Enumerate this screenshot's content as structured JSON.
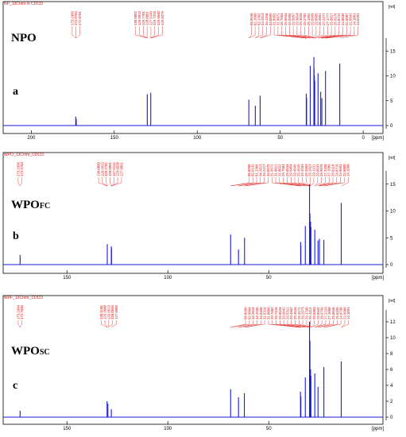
{
  "chart_data": [
    {
      "type": "line",
      "panel_letter": "a",
      "sample_label": "NPO",
      "sample_sub": "",
      "header": "NP_13Cnmr in CDCl3",
      "xlabel": "[ppm]",
      "ylabel": "[rel]",
      "xlim": [
        215,
        -10
      ],
      "ylim": [
        -0.5,
        16
      ],
      "x_ticks": [
        200,
        150,
        100,
        50,
        0
      ],
      "y_ticks": [
        0,
        5,
        10,
        15
      ],
      "grid": false,
      "peak_groups": [
        {
          "labels": [
            "173.1969",
            "172.9784",
            "172.8781"
          ],
          "peaks": [
            [
              173.2,
              1.8
            ],
            [
              172.98,
              1.4
            ],
            [
              172.88,
              1.2
            ]
          ]
        },
        {
          "labels": [
            "130.0802",
            "129.9913",
            "129.7781",
            "128.0081",
            "127.9143",
            "129.7316",
            "129.6540",
            "129.6379"
          ],
          "peaks": [
            [
              130.1,
              6.3
            ],
            [
              128.0,
              6.6
            ]
          ]
        },
        {
          "labels": [
            "68.8948",
            "62.1060",
            "62.1302",
            "34.2813",
            "34.1150",
            "34.0899",
            "31.8952",
            "31.8871",
            "29.7654",
            "29.6943",
            "29.5955",
            "29.5657",
            "29.3814",
            "29.3520",
            "29.2702",
            "29.1892",
            "29.0999",
            "29.0505",
            "28.9651",
            "27.2277",
            "27.1777",
            "25.6817",
            "25.6176",
            "24.8741",
            "24.8539",
            "22.6987",
            "22.6541",
            "14.1061",
            "14.0261"
          ],
          "peaks": [
            [
              68.9,
              5.2
            ],
            [
              65.0,
              4.0
            ],
            [
              62.1,
              6.0
            ],
            [
              34.3,
              6.4
            ],
            [
              34.1,
              5.6
            ],
            [
              31.9,
              12.0
            ],
            [
              29.7,
              13.8
            ],
            [
              29.6,
              11.5
            ],
            [
              29.4,
              10.0
            ],
            [
              29.2,
              9.0
            ],
            [
              27.2,
              10.5
            ],
            [
              25.6,
              6.8
            ],
            [
              24.9,
              5.5
            ],
            [
              22.7,
              11.0
            ],
            [
              14.1,
              12.5
            ]
          ]
        }
      ]
    },
    {
      "type": "line",
      "panel_letter": "b",
      "sample_label": "WPO",
      "sample_sub": "FC",
      "header": "WPO_13Cnmr_CDCl3",
      "xlabel": "[ppm]",
      "ylabel": "[rel]",
      "xlim": [
        180,
        -5
      ],
      "ylim": [
        -0.5,
        16
      ],
      "x_ticks": [
        150,
        100,
        50
      ],
      "y_ticks": [
        0,
        5,
        10,
        15
      ],
      "grid": false,
      "peak_groups": [
        {
          "labels": [
            "173.1950",
            "172.9784"
          ],
          "peaks": [
            [
              173.2,
              1.8
            ]
          ]
        },
        {
          "labels": [
            "130.0800",
            "129.9913",
            "129.7781",
            "128.0001",
            "127.9114",
            "129.6538",
            "127.8891"
          ],
          "peaks": [
            [
              130.0,
              3.8
            ],
            [
              128.0,
              3.4
            ],
            [
              127.9,
              3.0
            ]
          ]
        },
        {
          "labels": [
            "68.8950",
            "62.0132",
            "61.1306",
            "34.2813",
            "34.2217",
            "34.0976",
            "31.9672",
            "31.8621",
            "31.8022",
            "29.7683",
            "29.6534",
            "29.5454",
            "29.4649",
            "29.3535",
            "29.3163",
            "29.2663",
            "29.1823",
            "29.1131",
            "29.0533",
            "28.9876",
            "27.2158",
            "27.1689",
            "25.6118",
            "24.8716",
            "24.8594",
            "22.6800",
            "14.1068"
          ],
          "peaks": [
            [
              68.9,
              5.6
            ],
            [
              65.0,
              2.8
            ],
            [
              62.0,
              5.0
            ],
            [
              34.2,
              4.2
            ],
            [
              34.1,
              3.6
            ],
            [
              31.9,
              7.2
            ],
            [
              29.8,
              15.0
            ],
            [
              29.6,
              9.5
            ],
            [
              29.3,
              8.0
            ],
            [
              29.1,
              7.0
            ],
            [
              27.2,
              6.5
            ],
            [
              25.6,
              4.5
            ],
            [
              24.9,
              4.8
            ],
            [
              22.7,
              4.6
            ],
            [
              14.1,
              11.5
            ]
          ]
        }
      ]
    },
    {
      "type": "line",
      "panel_letter": "c",
      "sample_label": "WPO",
      "sample_sub": "SC",
      "header": "WPF_13Cnmr_CDCl3",
      "xlabel": "[ppm]",
      "ylabel": "[rel]",
      "xlim": [
        180,
        -5
      ],
      "ylim": [
        -0.5,
        12.5
      ],
      "x_ticks": [
        150,
        100,
        50
      ],
      "y_ticks": [
        0,
        2,
        4,
        6,
        8,
        10,
        12
      ],
      "grid": false,
      "peak_groups": [
        {
          "labels": [
            "173.1984",
            "172.7035"
          ],
          "peaks": [
            [
              173.2,
              0.8
            ]
          ]
        },
        {
          "labels": [
            "130.1186",
            "129.9600",
            "129.6513",
            "128.0546",
            "127.8989"
          ],
          "peaks": [
            [
              130.1,
              2.0
            ],
            [
              129.7,
              1.7
            ],
            [
              128.0,
              1.0
            ]
          ]
        },
        {
          "labels": [
            "68.8966",
            "62.0864",
            "34.2816",
            "34.1535",
            "34.0408",
            "31.9316",
            "31.8800",
            "29.7682",
            "29.7126",
            "29.6526",
            "29.5642",
            "29.5311",
            "29.4652",
            "29.3526",
            "29.3171",
            "29.2573",
            "29.1796",
            "29.1114",
            "29.0903",
            "29.0542",
            "28.9799",
            "27.2223",
            "27.1658",
            "25.6846",
            "25.6105",
            "24.8760",
            "22.6960",
            "14.1091"
          ],
          "peaks": [
            [
              68.9,
              3.5
            ],
            [
              65.0,
              2.5
            ],
            [
              62.1,
              3.0
            ],
            [
              34.3,
              3.2
            ],
            [
              34.1,
              2.6
            ],
            [
              31.9,
              5.0
            ],
            [
              29.8,
              12.0
            ],
            [
              29.6,
              9.6
            ],
            [
              29.3,
              6.0
            ],
            [
              29.1,
              5.2
            ],
            [
              27.2,
              5.5
            ],
            [
              25.6,
              3.8
            ],
            [
              22.7,
              6.3
            ],
            [
              14.1,
              7.0
            ]
          ]
        }
      ]
    }
  ]
}
